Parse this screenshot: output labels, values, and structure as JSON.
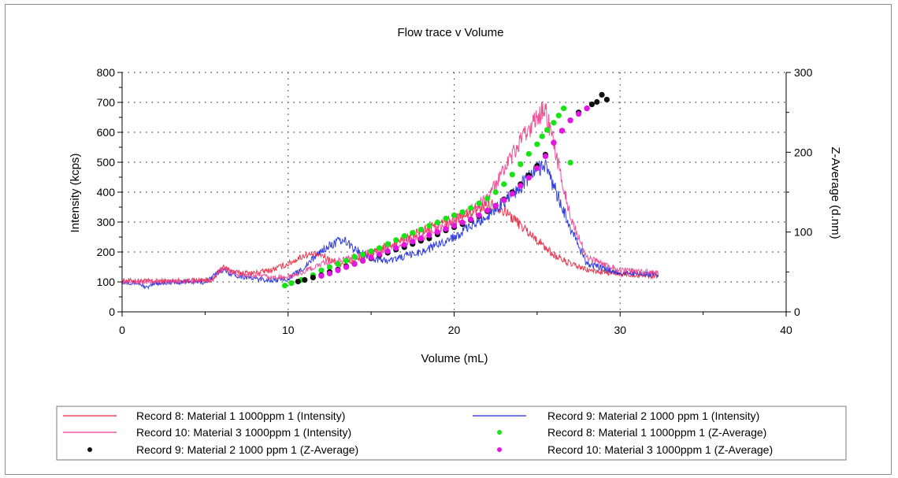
{
  "chart_data": {
    "type": "line",
    "title": "Flow trace v Volume",
    "xlabel": "Volume (mL)",
    "ylabel_left": "Intensity (kcps)",
    "ylabel_right": "Z-Average (d.nm)",
    "xlim": [
      0,
      40
    ],
    "ylim_left": [
      0,
      800
    ],
    "ylim_right": [
      0,
      300
    ],
    "x_ticks": [
      "0",
      "10",
      "20",
      "30",
      "40"
    ],
    "y_ticks_left": [
      "0",
      "100",
      "200",
      "300",
      "400",
      "500",
      "600",
      "700",
      "800"
    ],
    "y_ticks_right": [
      "0",
      "100",
      "200",
      "300"
    ],
    "grid": true,
    "legend_position": "bottom",
    "series": [
      {
        "name": "Record 8: Material 1 1000ppm 1 (Intensity)",
        "axis": "left",
        "kind": "line",
        "color": "#e8243c",
        "x": [
          0,
          2,
          4,
          5.5,
          6,
          7,
          8,
          9,
          10,
          11,
          12,
          13,
          14,
          16,
          18,
          20,
          21,
          22,
          22.5,
          23,
          24,
          25,
          26,
          27,
          28,
          30,
          32.3
        ],
        "y": [
          105,
          103,
          105,
          108,
          150,
          130,
          130,
          140,
          160,
          190,
          190,
          160,
          170,
          220,
          270,
          310,
          330,
          360,
          355,
          340,
          290,
          240,
          190,
          160,
          140,
          125,
          120
        ]
      },
      {
        "name": "Record 9: Material 2 1000 ppm 1 (Intensity)",
        "axis": "left",
        "kind": "line",
        "color": "#1d2bdc",
        "x": [
          0,
          1,
          1.5,
          2,
          4,
          5,
          6,
          7,
          8,
          9,
          10,
          11,
          12,
          13,
          13.5,
          14,
          15,
          16,
          18,
          20,
          22,
          24,
          25,
          25.5,
          26,
          27,
          28,
          30,
          32.3
        ],
        "y": [
          100,
          95,
          80,
          95,
          100,
          98,
          140,
          120,
          110,
          105,
          110,
          150,
          205,
          235,
          235,
          210,
          180,
          170,
          200,
          250,
          320,
          420,
          480,
          490,
          420,
          280,
          160,
          130,
          125
        ]
      },
      {
        "name": "Record 10: Material 3 1000ppm 1 (Intensity)",
        "axis": "left",
        "kind": "line",
        "color": "#ee3e8c",
        "x": [
          0,
          2,
          4,
          5.5,
          6,
          7,
          8,
          9,
          10,
          11,
          12,
          13,
          14,
          16,
          18,
          20,
          21,
          22,
          23,
          24,
          25,
          25.5,
          26,
          27,
          28,
          30,
          32.3
        ],
        "y": [
          100,
          100,
          103,
          105,
          145,
          125,
          120,
          115,
          115,
          135,
          160,
          170,
          185,
          210,
          250,
          300,
          340,
          380,
          470,
          570,
          650,
          680,
          560,
          320,
          180,
          140,
          130
        ]
      },
      {
        "name": "Record 8: Material 1 1000ppm 1 (Z-Average)",
        "axis": "right",
        "kind": "scatter",
        "color": "#17e317",
        "x": [
          9.8,
          10.2,
          10.8,
          11.5,
          12,
          12.5,
          13,
          13.5,
          14,
          14.5,
          15,
          15.5,
          16,
          16.5,
          17,
          17.5,
          18,
          18.5,
          19,
          19.5,
          20,
          20.5,
          21,
          21.5,
          22,
          22.5,
          23,
          23.5,
          24,
          24.5,
          25,
          25.3,
          25.6,
          26,
          26.3,
          26.6,
          27
        ],
        "y": [
          33,
          36,
          40,
          46,
          52,
          56,
          60,
          64,
          69,
          72,
          76,
          80,
          85,
          90,
          95,
          99,
          103,
          108,
          112,
          117,
          121,
          125,
          130,
          136,
          142,
          150,
          160,
          172,
          185,
          198,
          210,
          220,
          228,
          237,
          246,
          255,
          187
        ]
      },
      {
        "name": "Record 9: Material 2 1000 ppm 1 (Z-Average)",
        "axis": "right",
        "kind": "scatter",
        "color": "#111111",
        "x": [
          10.6,
          11,
          11.5,
          12,
          12.5,
          13,
          13.5,
          14,
          14.5,
          15,
          15.5,
          16,
          16.5,
          17,
          17.5,
          18,
          18.5,
          19,
          19.5,
          20,
          20.5,
          21,
          21.5,
          22,
          22.5,
          23,
          23.5,
          24,
          24.5,
          25,
          25.5,
          26,
          26.5,
          27,
          27.5,
          28,
          28.3,
          28.6,
          28.9,
          29.2
        ],
        "y": [
          38,
          40,
          43,
          46,
          50,
          53,
          57,
          60,
          64,
          67,
          71,
          74,
          78,
          81,
          85,
          89,
          92,
          97,
          102,
          106,
          110,
          115,
          120,
          126,
          133,
          141,
          150,
          160,
          171,
          183,
          197,
          212,
          227,
          240,
          250,
          255,
          260,
          263,
          272,
          266
        ]
      },
      {
        "name": "Record 10: Material 3 1000ppm 1 (Z-Average)",
        "axis": "right",
        "kind": "scatter",
        "color": "#e514e5",
        "x": [
          12,
          12.5,
          13,
          13.5,
          14,
          14.5,
          15,
          15.5,
          16,
          16.5,
          17,
          17.5,
          18,
          18.5,
          19,
          19.5,
          20,
          20.5,
          21,
          21.5,
          22,
          22.5,
          23,
          23.5,
          24,
          24.5,
          25,
          25.5,
          26,
          26.5,
          27,
          27.5,
          28
        ],
        "y": [
          45,
          48,
          52,
          56,
          60,
          64,
          68,
          72,
          76,
          80,
          84,
          88,
          92,
          96,
          100,
          104,
          108,
          112,
          116,
          121,
          127,
          133,
          140,
          148,
          158,
          168,
          180,
          195,
          212,
          227,
          240,
          248,
          255
        ]
      }
    ]
  },
  "legend": [
    {
      "label": "Record 8: Material 1 1000ppm 1 (Intensity)",
      "marker": "line",
      "color": "#e8243c"
    },
    {
      "label": "Record 9: Material 2 1000 ppm 1 (Intensity)",
      "marker": "line",
      "color": "#1d2bdc"
    },
    {
      "label": "Record 10: Material 3 1000ppm 1 (Intensity)",
      "marker": "line",
      "color": "#ee3e8c"
    },
    {
      "label": "Record 8: Material 1 1000ppm 1 (Z-Average)",
      "marker": "dot",
      "color": "#17e317"
    },
    {
      "label": "Record 9: Material 2 1000 ppm 1 (Z-Average)",
      "marker": "dot",
      "color": "#111111"
    },
    {
      "label": "Record 10: Material 3 1000ppm 1 (Z-Average)",
      "marker": "dot",
      "color": "#e514e5"
    }
  ]
}
